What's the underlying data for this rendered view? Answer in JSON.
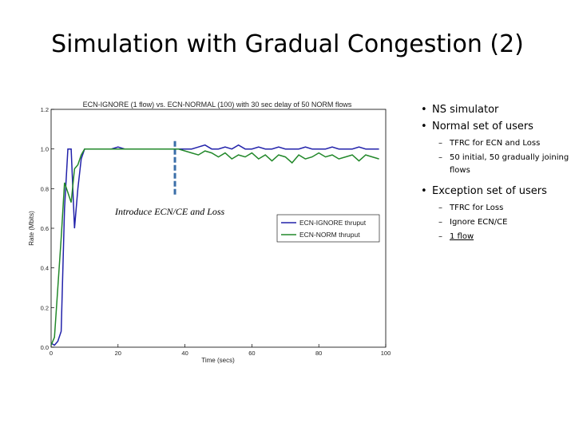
{
  "slide": {
    "title": "Simulation with Gradual Congestion (2)",
    "annotation": "Introduce ECN/CE and Loss"
  },
  "bullets": [
    {
      "text": "NS simulator",
      "subs": []
    },
    {
      "text": "Normal set of users",
      "subs": [
        "TFRC for ECN and Loss",
        "50 initial, 50 gradually joining flows"
      ]
    },
    {
      "text": "Exception set of users",
      "subs": [
        "TFRC for Loss",
        "Ignore ECN/CE",
        "1 flow"
      ]
    }
  ],
  "chart_data": {
    "type": "line",
    "title": "ECN-IGNORE (1 flow) vs. ECN-NORMAL (100) with 30 sec delay of 50 NORM flows",
    "xlabel": "Time (secs)",
    "ylabel": "Rate (Mbits)",
    "xlim": [
      0,
      100
    ],
    "ylim": [
      0,
      1.2
    ],
    "xticks": [
      "0",
      "20",
      "40",
      "60",
      "80",
      "100"
    ],
    "yticks": [
      "0.0",
      "0.2",
      "0.4",
      "0.6",
      "0.8",
      "1.0",
      "1.2"
    ],
    "marker_x": 37,
    "series": [
      {
        "name": "ECN-IGNORE thruput",
        "color": "#2222aa",
        "x": [
          0,
          1,
          2,
          3,
          4,
          5,
          6,
          7,
          8,
          9,
          10,
          12,
          14,
          16,
          18,
          20,
          22,
          24,
          26,
          28,
          30,
          32,
          34,
          36,
          38,
          40,
          42,
          44,
          46,
          48,
          50,
          52,
          54,
          56,
          58,
          60,
          62,
          64,
          66,
          68,
          70,
          72,
          74,
          76,
          78,
          80,
          82,
          84,
          86,
          88,
          90,
          92,
          94,
          96,
          98
        ],
        "y": [
          0.02,
          0.01,
          0.03,
          0.08,
          0.7,
          1.0,
          1.0,
          0.6,
          0.8,
          0.95,
          1.0,
          1.0,
          1.0,
          1.0,
          1.0,
          1.01,
          1.0,
          1.0,
          1.0,
          1.0,
          1.0,
          1.0,
          1.0,
          1.0,
          1.0,
          1.0,
          1.0,
          1.01,
          1.02,
          1.0,
          1.0,
          1.01,
          1.0,
          1.02,
          1.0,
          1.0,
          1.01,
          1.0,
          1.0,
          1.01,
          1.0,
          1.0,
          1.0,
          1.01,
          1.0,
          1.0,
          1.0,
          1.01,
          1.0,
          1.0,
          1.0,
          1.01,
          1.0,
          1.0,
          1.0
        ]
      },
      {
        "name": "ECN-NORM thruput",
        "color": "#22882a",
        "x": [
          0,
          1,
          2,
          3,
          4,
          5,
          6,
          7,
          8,
          9,
          10,
          12,
          14,
          16,
          18,
          20,
          22,
          24,
          26,
          28,
          30,
          32,
          34,
          36,
          38,
          40,
          42,
          44,
          46,
          48,
          50,
          52,
          54,
          56,
          58,
          60,
          62,
          64,
          66,
          68,
          70,
          72,
          74,
          76,
          78,
          80,
          82,
          84,
          86,
          88,
          90,
          92,
          94,
          96,
          98
        ],
        "y": [
          0.01,
          0.05,
          0.3,
          0.55,
          0.83,
          0.78,
          0.73,
          0.9,
          0.92,
          0.97,
          1.0,
          1.0,
          1.0,
          1.0,
          1.0,
          1.0,
          1.0,
          1.0,
          1.0,
          1.0,
          1.0,
          1.0,
          1.0,
          1.0,
          1.0,
          0.99,
          0.98,
          0.97,
          0.99,
          0.98,
          0.96,
          0.98,
          0.95,
          0.97,
          0.96,
          0.98,
          0.95,
          0.97,
          0.94,
          0.97,
          0.96,
          0.93,
          0.97,
          0.95,
          0.96,
          0.98,
          0.96,
          0.97,
          0.95,
          0.96,
          0.97,
          0.94,
          0.97,
          0.96,
          0.95
        ]
      }
    ]
  }
}
